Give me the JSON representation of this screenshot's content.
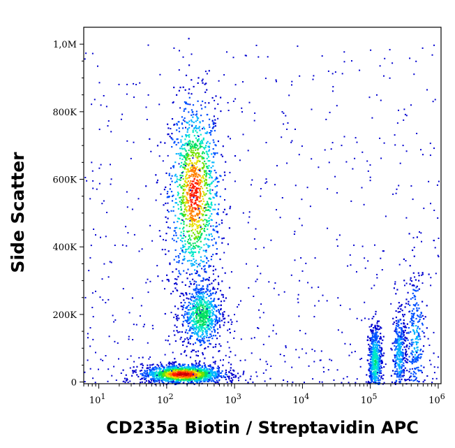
{
  "chart_data": {
    "type": "scatter",
    "title": "",
    "xlabel": "CD235a Biotin / Streptavidin APC",
    "ylabel": "Side Scatter",
    "x_scale": "log",
    "xlim": [
      6,
      1100000
    ],
    "ylim": [
      -5000,
      1050000
    ],
    "x_ticks": [
      {
        "value": 10,
        "label_base": "10",
        "label_exp": "1"
      },
      {
        "value": 100,
        "label_base": "10",
        "label_exp": "2"
      },
      {
        "value": 1000,
        "label_base": "10",
        "label_exp": "3"
      },
      {
        "value": 10000,
        "label_base": "10",
        "label_exp": "4"
      },
      {
        "value": 100000,
        "label_base": "10",
        "label_exp": "5"
      },
      {
        "value": 1000000,
        "label_base": "10",
        "label_exp": "6"
      }
    ],
    "y_ticks": [
      {
        "value": 0,
        "label": "0"
      },
      {
        "value": 200000,
        "label": "200K"
      },
      {
        "value": 400000,
        "label": "400K"
      },
      {
        "value": 600000,
        "label": "600K"
      },
      {
        "value": 800000,
        "label": "800K"
      },
      {
        "value": 1000000,
        "label": "1,0M"
      }
    ],
    "grid": false,
    "legend": "none",
    "colormap": [
      "#0000d0",
      "#0050ff",
      "#00b4ff",
      "#00e8c8",
      "#00e060",
      "#70e000",
      "#e8e000",
      "#ff8000",
      "#ff1800",
      "#c80000"
    ],
    "populations": [
      {
        "x_center": 250,
        "y_center": 560000,
        "x_spread_decades": 0.19,
        "y_spread": 140000,
        "relative_density": 0.9
      },
      {
        "x_center": 320,
        "y_center": 200000,
        "x_spread_decades": 0.15,
        "y_spread": 50000,
        "relative_density": 0.5
      },
      {
        "x_center": 170,
        "y_center": 25000,
        "x_spread_decades": 0.3,
        "y_spread": 14000,
        "relative_density": 1.0
      },
      {
        "x_center": 115000,
        "y_center": 60000,
        "x_spread_decades": 0.05,
        "y_spread": 55000,
        "relative_density": 0.4
      },
      {
        "x_center": 260000,
        "y_center": 80000,
        "x_spread_decades": 0.05,
        "y_spread": 70000,
        "relative_density": 0.25
      },
      {
        "x_center": 450000,
        "y_center": 130000,
        "x_spread_decades": 0.08,
        "y_spread": 110000,
        "relative_density": 0.2
      }
    ]
  }
}
